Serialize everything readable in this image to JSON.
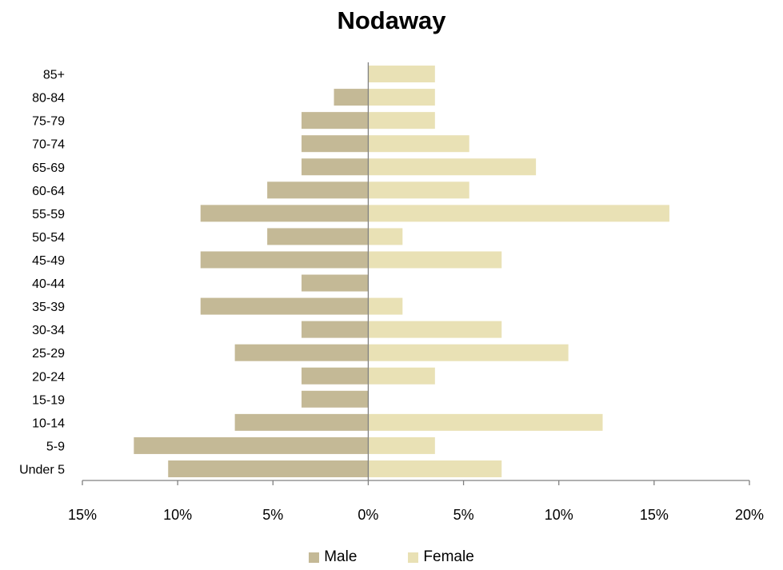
{
  "chart_data": {
    "type": "bar",
    "orientation": "horizontal",
    "title": "Nodaway",
    "categories": [
      "Under 5",
      "5-9",
      "10-14",
      "15-19",
      "20-24",
      "25-29",
      "30-34",
      "35-39",
      "40-44",
      "45-49",
      "50-54",
      "55-59",
      "60-64",
      "65-69",
      "70-74",
      "75-79",
      "80-84",
      "85+"
    ],
    "series": [
      {
        "name": "Male",
        "color": "#c4b996",
        "values": [
          -10.5,
          -12.3,
          -7.0,
          -3.5,
          -3.5,
          -7.0,
          -3.5,
          -8.8,
          -3.5,
          -8.8,
          -5.3,
          -8.8,
          -5.3,
          -3.5,
          -3.5,
          -3.5,
          -1.8,
          0
        ]
      },
      {
        "name": "Female",
        "color": "#e9e1b5",
        "values": [
          7.0,
          3.5,
          12.3,
          0,
          3.5,
          10.5,
          7.0,
          1.8,
          0,
          7.0,
          1.8,
          15.8,
          5.3,
          8.8,
          5.3,
          3.5,
          3.5,
          3.5
        ]
      }
    ],
    "xlim": [
      -15,
      20
    ],
    "xticks": [
      -15,
      -10,
      -5,
      0,
      5,
      10,
      15,
      20
    ],
    "xtick_labels": [
      "15%",
      "10%",
      "5%",
      "0%",
      "5%",
      "10%",
      "15%",
      "20%"
    ],
    "legend_position": "bottom",
    "grid": false
  }
}
